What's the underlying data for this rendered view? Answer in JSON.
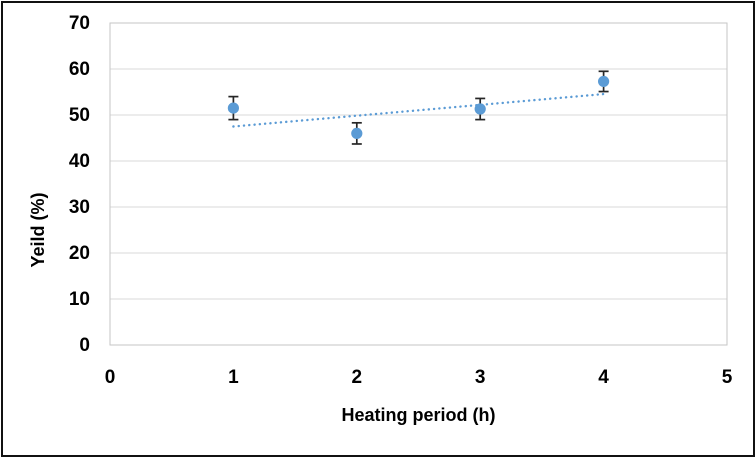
{
  "figure": {
    "background": "#ffffff",
    "border_color": "#111111"
  },
  "chart_data": {
    "type": "scatter",
    "title": "",
    "xlabel": "Heating period (h)",
    "ylabel": "Yeild (%)",
    "x": [
      1,
      2,
      3,
      4
    ],
    "y": [
      51.5,
      46.0,
      51.3,
      57.3
    ],
    "y_error": [
      2.5,
      2.3,
      2.3,
      2.2
    ],
    "xlim": [
      0,
      5
    ],
    "ylim": [
      0,
      70
    ],
    "x_ticks": [
      0,
      1,
      2,
      3,
      4,
      5
    ],
    "y_ticks": [
      0,
      10,
      20,
      30,
      40,
      50,
      60,
      70
    ],
    "grid": "horizontal",
    "legend": "none",
    "marker_color": "#5B9BD5",
    "error_bar_color": "#262626",
    "gridline_color": "#D9D9D9",
    "plot_border_color": "#C6C6C6",
    "trendline": {
      "style": "dotted",
      "color": "#5B9BD5",
      "x_start": 1.0,
      "y_start": 47.5,
      "x_end": 4.02,
      "y_end": 54.6
    }
  }
}
